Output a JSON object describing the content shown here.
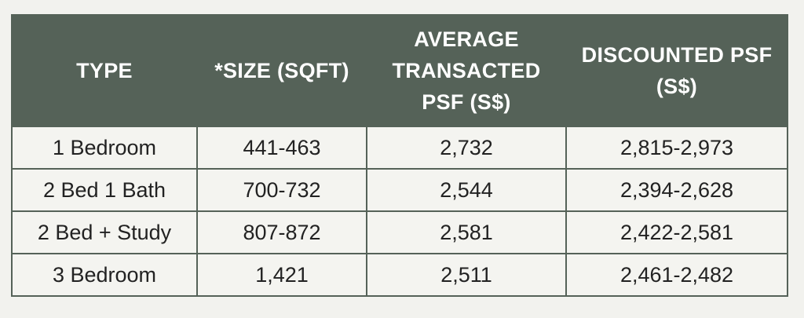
{
  "table": {
    "headers": [
      {
        "lines": [
          "TYPE"
        ]
      },
      {
        "lines": [
          "*SIZE (SQFT)"
        ]
      },
      {
        "lines": [
          "AVERAGE",
          "TRANSACTED",
          "PSF (S$)"
        ]
      },
      {
        "lines": [
          "DISCOUNTED PSF",
          "(S$)"
        ]
      }
    ],
    "rows": [
      {
        "type": "1 Bedroom",
        "size": "441-463",
        "avg_psf": "2,732",
        "discounted_psf": "2,815-2,973"
      },
      {
        "type": "2 Bed 1 Bath",
        "size": "700-732",
        "avg_psf": "2,544",
        "discounted_psf": "2,394-2,628"
      },
      {
        "type": "2 Bed + Study",
        "size": "807-872",
        "avg_psf": "2,581",
        "discounted_psf": "2,422-2,581"
      },
      {
        "type": "3 Bedroom",
        "size": "1,421",
        "avg_psf": "2,511",
        "discounted_psf": "2,461-2,482"
      }
    ]
  },
  "colors": {
    "header_bg": "#556258",
    "header_text": "#ffffff",
    "cell_bg": "#f4f4f0",
    "page_bg": "#f2f2ee"
  }
}
